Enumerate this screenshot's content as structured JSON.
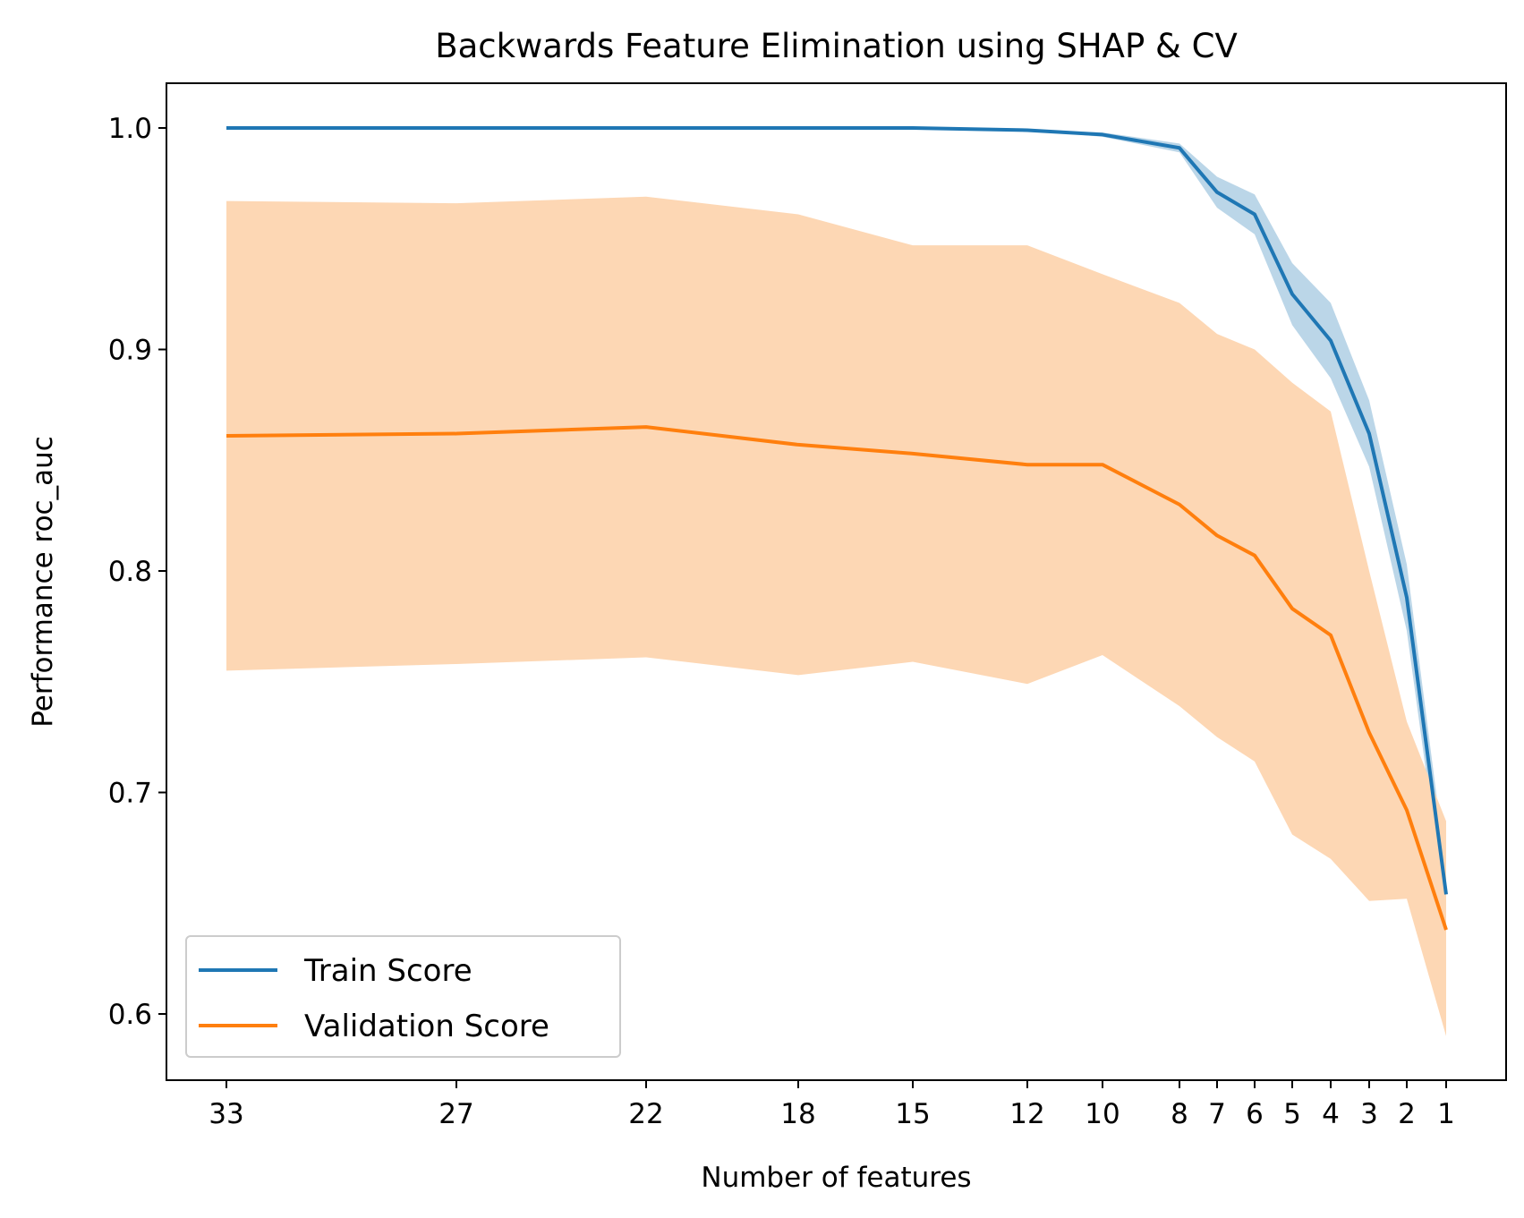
{
  "chart_data": {
    "type": "line",
    "title": "Backwards Feature Elimination using SHAP & CV",
    "xlabel": "Number of features",
    "ylabel": "Performance roc_auc",
    "x_reversed": true,
    "x_ticks": [
      33,
      27,
      22,
      18,
      15,
      12,
      10,
      8,
      7,
      6,
      5,
      4,
      3,
      2,
      1
    ],
    "x_tick_labels": [
      "33",
      "27",
      "22",
      "18",
      "15",
      "12",
      "10",
      "8",
      "7",
      "6",
      "5",
      "4",
      "3",
      "2",
      "1"
    ],
    "y_ticks": [
      0.6,
      0.7,
      0.8,
      0.9,
      1.0
    ],
    "y_tick_labels": [
      "0.6",
      "0.7",
      "0.8",
      "0.9",
      "1.0"
    ],
    "ylim": [
      0.57,
      1.02
    ],
    "grid": false,
    "legend_position": "lower-left",
    "series": [
      {
        "name": "Train Score",
        "color": "#1f77b4",
        "band_color": "#1f77b4",
        "values": [
          1.0,
          1.0,
          1.0,
          1.0,
          1.0,
          0.999,
          0.997,
          0.991,
          0.971,
          0.961,
          0.925,
          0.904,
          0.862,
          0.788,
          0.654
        ],
        "upper": [
          1.0,
          1.0,
          1.0,
          1.0,
          1.0,
          0.999,
          0.998,
          0.993,
          0.978,
          0.97,
          0.939,
          0.921,
          0.877,
          0.803,
          0.665
        ],
        "lower": [
          1.0,
          1.0,
          1.0,
          1.0,
          1.0,
          0.999,
          0.996,
          0.989,
          0.964,
          0.952,
          0.911,
          0.887,
          0.847,
          0.773,
          0.643
        ]
      },
      {
        "name": "Validation Score",
        "color": "#ff7f0e",
        "band_color": "#fdd7b4",
        "values": [
          0.861,
          0.862,
          0.865,
          0.857,
          0.853,
          0.848,
          0.848,
          0.83,
          0.816,
          0.807,
          0.783,
          0.771,
          0.727,
          0.692,
          0.638
        ],
        "upper": [
          0.967,
          0.966,
          0.969,
          0.961,
          0.947,
          0.947,
          0.934,
          0.921,
          0.907,
          0.9,
          0.885,
          0.872,
          0.8,
          0.732,
          0.687
        ],
        "lower": [
          0.755,
          0.758,
          0.761,
          0.753,
          0.759,
          0.749,
          0.762,
          0.739,
          0.725,
          0.714,
          0.681,
          0.67,
          0.651,
          0.652,
          0.59
        ]
      }
    ]
  }
}
